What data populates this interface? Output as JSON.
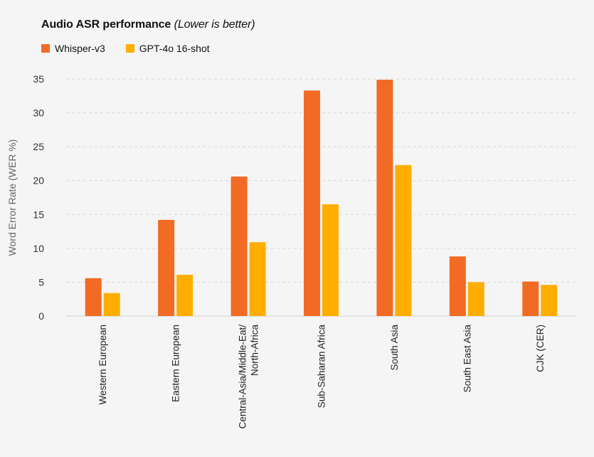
{
  "chart_data": {
    "type": "bar",
    "title": "Audio ASR performance",
    "subtitle": "(Lower is better)",
    "ylabel": "Word Error Rate (WER %)",
    "xlabel": "",
    "ylim": [
      0,
      35
    ],
    "yticks": [
      0,
      5,
      10,
      15,
      20,
      25,
      30,
      35
    ],
    "grid": true,
    "legend_position": "top-left",
    "categories": [
      "Western European",
      "Eastern European",
      "Central-Asia/Middle-Eat/ North-Africa",
      "Sub-Saharan Africa",
      "South Asia",
      "South East Asia",
      "CJK (CER)"
    ],
    "series": [
      {
        "name": "Whisper-v3",
        "color": "#f26b24",
        "values": [
          5.6,
          14.2,
          20.6,
          33.3,
          34.9,
          8.8,
          5.1
        ]
      },
      {
        "name": "GPT-4o 16-shot",
        "color": "#ffae00",
        "values": [
          3.4,
          6.1,
          10.9,
          16.5,
          22.3,
          5.0,
          4.6
        ]
      }
    ]
  }
}
